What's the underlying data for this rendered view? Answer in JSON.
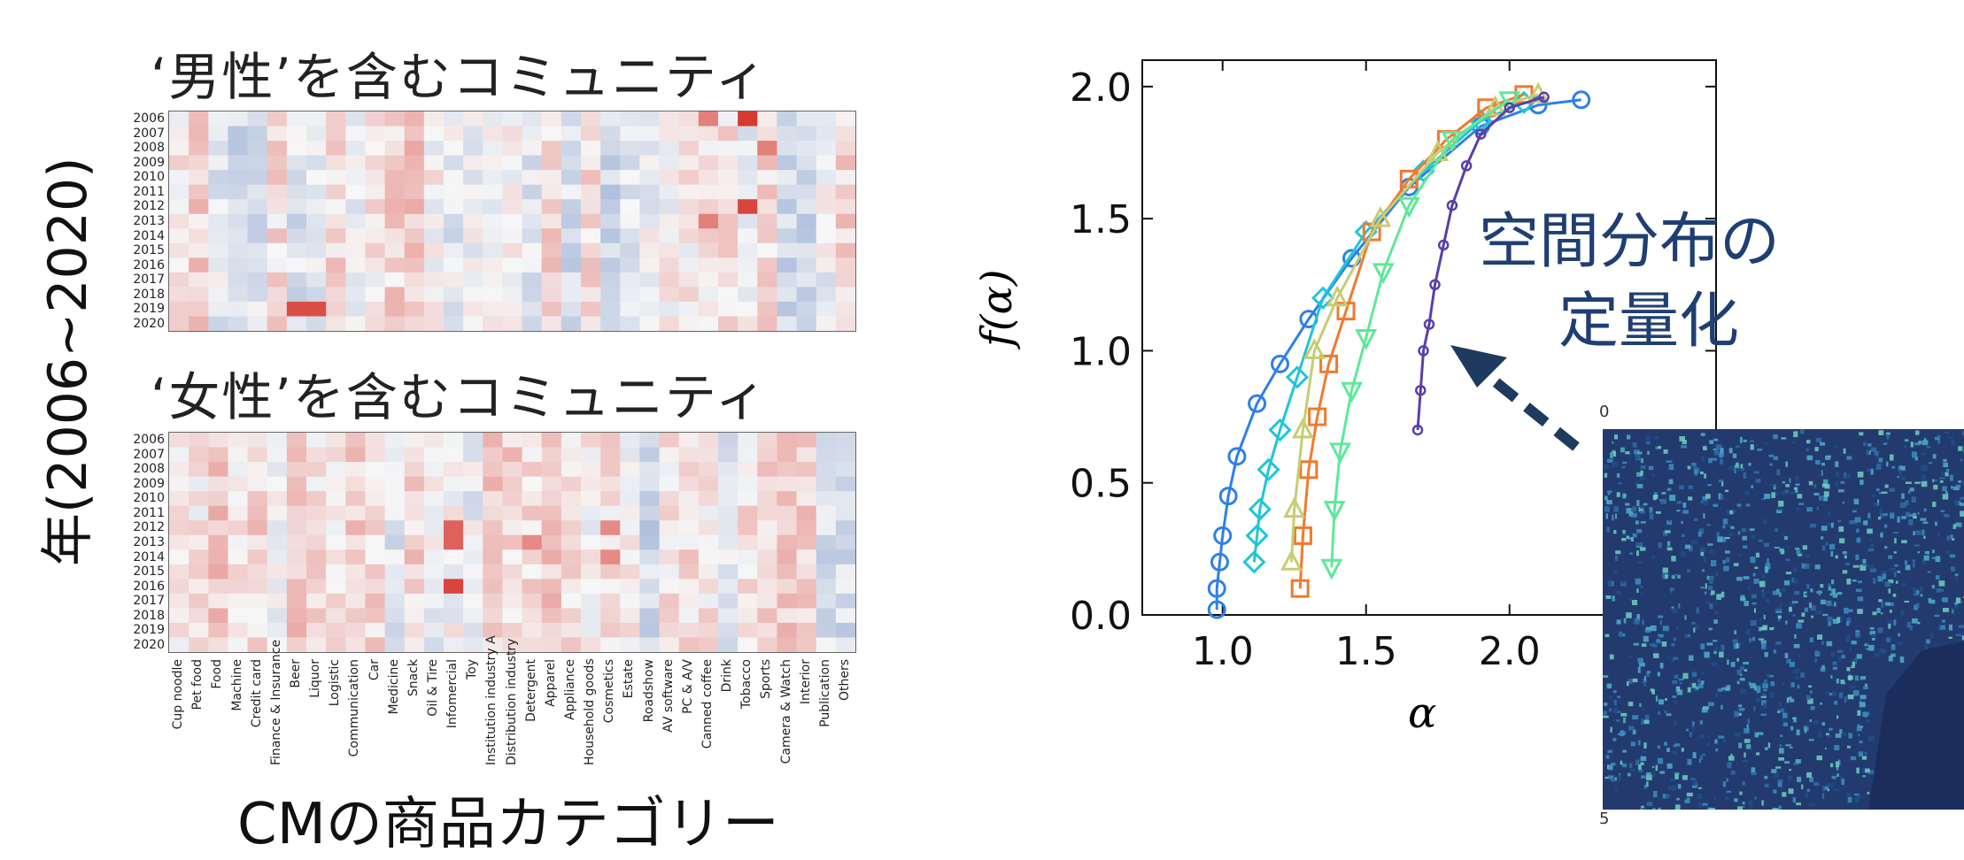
{
  "left_panel": {
    "heatmap_male_title": "‘男性’を含むコミュニティ",
    "heatmap_female_title": "‘女性’を含むコミュニティ",
    "y_axis_label": "年(2006~2020)",
    "x_axis_label": "CMの商品カテゴリー"
  },
  "right_panel": {
    "annotation_line1": "空間分布の",
    "annotation_line2": "定量化",
    "map_tick_top": "0",
    "map_tick_bottom": "5"
  },
  "colors": {
    "arrow": "#1f3a5f",
    "annotation": "#1f3f73",
    "heat_positive": "#d73027",
    "heat_negative": "#4a6fb5"
  },
  "chart_data": [
    {
      "type": "heatmap",
      "title": "‘男性’を含むコミュニティ",
      "ylabel": "年(2006~2020)",
      "years": [
        "2006",
        "2007",
        "2008",
        "2009",
        "2010",
        "2011",
        "2012",
        "2013",
        "2014",
        "2015",
        "2016",
        "2017",
        "2018",
        "2019",
        "2020"
      ],
      "categories": [
        "Cup noodle",
        "Pet food",
        "Food",
        "Machine",
        "Credit card",
        "Finance & Insurance",
        "Beer",
        "Liquor",
        "Logistic",
        "Communication",
        "Car",
        "Medicine",
        "Snack",
        "Oil & Tire",
        "Infomercial",
        "Toy",
        "Institution industry A",
        "Distribution industry",
        "Detergent",
        "Apparel",
        "Appliance",
        "Household goods",
        "Cosmetics",
        "Estate",
        "Roadshow",
        "AV software",
        "PC & A/V",
        "Canned coffee",
        "Drink",
        "Tobacco",
        "Sports",
        "Camera & Watch",
        "Interior",
        "Publication",
        "Others"
      ],
      "highlights": [
        {
          "year": "2006",
          "category": "Tobacco",
          "value": 0.95
        },
        {
          "year": "2012",
          "category": "Tobacco",
          "value": 0.9
        },
        {
          "year": "2019",
          "category": "Beer",
          "value": 0.85
        },
        {
          "year": "2019",
          "category": "Liquor",
          "value": 0.85
        },
        {
          "year": "2006",
          "category": "Canned coffee",
          "value": 0.6
        },
        {
          "year": "2013",
          "category": "Canned coffee",
          "value": 0.6
        },
        {
          "year": "2008",
          "category": "Sports",
          "value": 0.6
        }
      ],
      "colormap": "coolwarm"
    },
    {
      "type": "heatmap",
      "title": "‘女性’を含むコミュニティ",
      "ylabel": "年(2006~2020)",
      "xlabel": "CMの商品カテゴリー",
      "years": [
        "2006",
        "2007",
        "2008",
        "2009",
        "2010",
        "2011",
        "2012",
        "2013",
        "2014",
        "2015",
        "2016",
        "2017",
        "2018",
        "2019",
        "2020"
      ],
      "categories": [
        "Cup noodle",
        "Pet food",
        "Food",
        "Machine",
        "Credit card",
        "Finance & Insurance",
        "Beer",
        "Liquor",
        "Logistic",
        "Communication",
        "Car",
        "Medicine",
        "Snack",
        "Oil & Tire",
        "Infomercial",
        "Toy",
        "Institution industry A",
        "Distribution industry",
        "Detergent",
        "Apparel",
        "Appliance",
        "Household goods",
        "Cosmetics",
        "Estate",
        "Roadshow",
        "AV software",
        "PC & A/V",
        "Canned coffee",
        "Drink",
        "Tobacco",
        "Sports",
        "Camera & Watch",
        "Interior",
        "Publication",
        "Others"
      ],
      "highlights": [
        {
          "year": "2012",
          "category": "Infomercial",
          "value": 0.75
        },
        {
          "year": "2013",
          "category": "Infomercial",
          "value": 0.75
        },
        {
          "year": "2016",
          "category": "Infomercial",
          "value": 0.9
        },
        {
          "year": "2012",
          "category": "Cosmetics",
          "value": 0.55
        },
        {
          "year": "2014",
          "category": "Cosmetics",
          "value": 0.55
        },
        {
          "year": "2013",
          "category": "Detergent",
          "value": 0.55
        }
      ],
      "colormap": "coolwarm"
    },
    {
      "type": "line",
      "xlabel": "α",
      "ylabel": "f(α)",
      "xticks": [
        "1.0",
        "1.5",
        "2.0"
      ],
      "yticks": [
        "0.0",
        "0.5",
        "1.0",
        "1.5",
        "2.0"
      ],
      "xlim": [
        0.72,
        2.72
      ],
      "ylim": [
        0.0,
        2.1
      ],
      "series": [
        {
          "color": "#2f7fe8",
          "marker": "circle",
          "x": [
            0.98,
            0.98,
            0.99,
            1.0,
            1.02,
            1.05,
            1.12,
            1.2,
            1.3,
            1.45,
            1.65,
            1.9,
            2.1,
            2.25
          ],
          "y": [
            0.02,
            0.1,
            0.2,
            0.3,
            0.45,
            0.6,
            0.8,
            0.95,
            1.12,
            1.35,
            1.62,
            1.85,
            1.93,
            1.95
          ]
        },
        {
          "color": "#1fc6d6",
          "marker": "diamond",
          "x": [
            1.11,
            1.12,
            1.13,
            1.16,
            1.2,
            1.26,
            1.35,
            1.5,
            1.7,
            1.9,
            2.05
          ],
          "y": [
            0.2,
            0.3,
            0.4,
            0.55,
            0.7,
            0.9,
            1.2,
            1.45,
            1.68,
            1.87,
            1.94
          ]
        },
        {
          "color": "#f07a2f",
          "marker": "square",
          "x": [
            1.27,
            1.28,
            1.3,
            1.33,
            1.37,
            1.43,
            1.52,
            1.65,
            1.78,
            1.92,
            2.05
          ],
          "y": [
            0.1,
            0.3,
            0.55,
            0.75,
            0.95,
            1.15,
            1.45,
            1.65,
            1.8,
            1.92,
            1.97
          ]
        },
        {
          "color": "#c7cd72",
          "marker": "triangle-up",
          "x": [
            1.24,
            1.25,
            1.28,
            1.32,
            1.4,
            1.55,
            1.75,
            1.95,
            2.1
          ],
          "y": [
            0.2,
            0.4,
            0.7,
            1.0,
            1.2,
            1.5,
            1.75,
            1.92,
            1.97
          ]
        },
        {
          "color": "#5ee89a",
          "marker": "triangle-down",
          "x": [
            1.38,
            1.39,
            1.41,
            1.45,
            1.5,
            1.56,
            1.65,
            1.8,
            2.0
          ],
          "y": [
            0.18,
            0.4,
            0.62,
            0.85,
            1.05,
            1.3,
            1.55,
            1.8,
            1.95
          ]
        },
        {
          "color": "#5b3fa8",
          "marker": "small-circle",
          "x": [
            1.68,
            1.69,
            1.7,
            1.72,
            1.74,
            1.77,
            1.8,
            1.85,
            1.9,
            2.0,
            2.12
          ],
          "y": [
            0.7,
            0.85,
            1.0,
            1.1,
            1.25,
            1.4,
            1.55,
            1.7,
            1.82,
            1.92,
            1.96
          ]
        }
      ]
    }
  ]
}
